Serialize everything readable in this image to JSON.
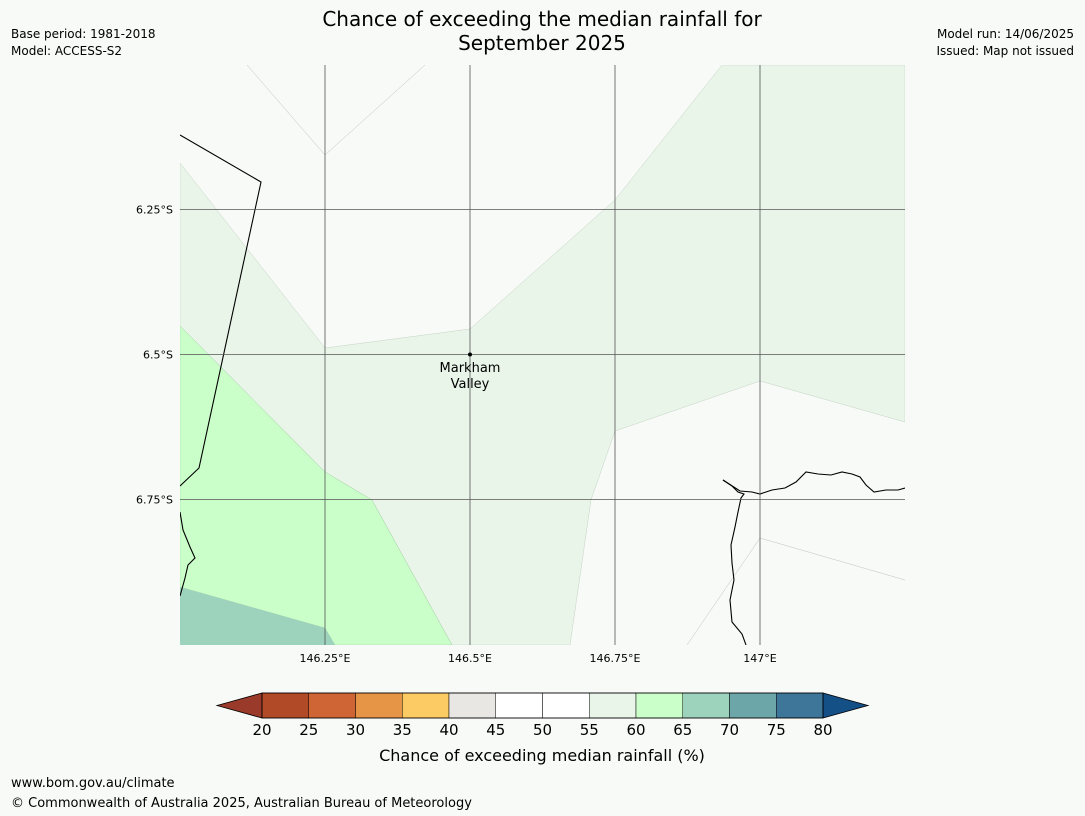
{
  "header": {
    "title_line1": "Chance of exceeding the median rainfall for",
    "title_line2": "September 2025",
    "base_period": "Base period: 1981-2018",
    "model": "Model: ACCESS-S2",
    "model_run": "Model run: 14/06/2025",
    "issued": "Issued: Map not issued"
  },
  "map": {
    "lat_labels": [
      "6.25°S",
      "6.5°S",
      "6.75°S"
    ],
    "lon_labels": [
      "146.25°E",
      "146.5°E",
      "146.75°E",
      "147°E"
    ],
    "place": {
      "name_line1": "Markham",
      "name_line2": "Valley"
    },
    "colors": {
      "c50_55": "#f8faf7",
      "c55_60": "#e9f5e9",
      "c60_65": "#caffca",
      "c65_70": "#9dd2bc",
      "grid": "#555555",
      "boundary": "#000000"
    }
  },
  "colorbar": {
    "label": "Chance of exceeding median rainfall (%)",
    "ticks": [
      "20",
      "25",
      "30",
      "35",
      "40",
      "45",
      "50",
      "55",
      "60",
      "65",
      "70",
      "75",
      "80"
    ],
    "low_color": "#9a3a2a",
    "high_color": "#144f86",
    "colors": [
      "#b04a27",
      "#cf6535",
      "#e59545",
      "#fdcb63",
      "#e9e7e3",
      "#ffffff",
      "#ffffff",
      "#e9f5e9",
      "#caffca",
      "#9dd2bc",
      "#6ca6a8",
      "#3e7699"
    ]
  },
  "footer": {
    "url": "www.bom.gov.au/climate",
    "copyright": "© Commonwealth of Australia 2025, Australian Bureau of Meteorology"
  }
}
